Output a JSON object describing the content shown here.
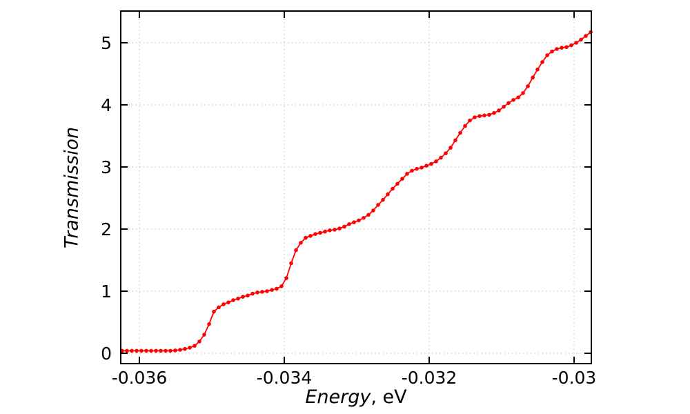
{
  "figure": {
    "background": "#ffffff",
    "border_color": "#000000",
    "grid_color": "#bcbcbc",
    "series_color": "#ff0000"
  },
  "axes": {
    "x_title_italic": "Energy",
    "x_title_suffix": ", eV",
    "y_title": "Transmission"
  },
  "chart_data": {
    "type": "line",
    "title": "",
    "xlabel": "Energy, eV",
    "ylabel": "Transmission",
    "legend": null,
    "grid": true,
    "grid_style": "dotted",
    "marker": "filled-circle",
    "line_color": "#ff0000",
    "xlim": [
      -0.036257,
      -0.029762
    ],
    "ylim": [
      -0.167,
      5.511
    ],
    "xticks": [
      {
        "v": -0.036,
        "label": "-0.036"
      },
      {
        "v": -0.034,
        "label": "-0.034"
      },
      {
        "v": -0.032,
        "label": "-0.032"
      },
      {
        "v": -0.03,
        "label": "-0.03"
      }
    ],
    "yticks": [
      {
        "v": 0,
        "label": "0"
      },
      {
        "v": 1,
        "label": "1"
      },
      {
        "v": 2,
        "label": "2"
      },
      {
        "v": 3,
        "label": "3"
      },
      {
        "v": 4,
        "label": "4"
      },
      {
        "v": 5,
        "label": "5"
      }
    ],
    "series": [
      {
        "name": "transmission",
        "x": [
          -0.036238,
          -0.036171,
          -0.036105,
          -0.036038,
          -0.035971,
          -0.035905,
          -0.035838,
          -0.035771,
          -0.035705,
          -0.035638,
          -0.035571,
          -0.035505,
          -0.035438,
          -0.035371,
          -0.035305,
          -0.035238,
          -0.035171,
          -0.035105,
          -0.035038,
          -0.034971,
          -0.034905,
          -0.034838,
          -0.034771,
          -0.034705,
          -0.034638,
          -0.034571,
          -0.034505,
          -0.034438,
          -0.034371,
          -0.034305,
          -0.034238,
          -0.034171,
          -0.034105,
          -0.034038,
          -0.033971,
          -0.033905,
          -0.033838,
          -0.033771,
          -0.033705,
          -0.033638,
          -0.033571,
          -0.033505,
          -0.033438,
          -0.033371,
          -0.033305,
          -0.033238,
          -0.033171,
          -0.033105,
          -0.033038,
          -0.032971,
          -0.032905,
          -0.032838,
          -0.032771,
          -0.032705,
          -0.032638,
          -0.032571,
          -0.032505,
          -0.032438,
          -0.032371,
          -0.032305,
          -0.032238,
          -0.032171,
          -0.032105,
          -0.032038,
          -0.031971,
          -0.031905,
          -0.031838,
          -0.031771,
          -0.031705,
          -0.031638,
          -0.031571,
          -0.031505,
          -0.031438,
          -0.031371,
          -0.031305,
          -0.031238,
          -0.031171,
          -0.031105,
          -0.031038,
          -0.030971,
          -0.030905,
          -0.030838,
          -0.030771,
          -0.030705,
          -0.030638,
          -0.030571,
          -0.030505,
          -0.030438,
          -0.030371,
          -0.030305,
          -0.030238,
          -0.030171,
          -0.030105,
          -0.030038,
          -0.029971,
          -0.029905,
          -0.029838,
          -0.029771
        ],
        "y": [
          0.04,
          0.04,
          0.04,
          0.04,
          0.04,
          0.04,
          0.04,
          0.04,
          0.04,
          0.04,
          0.04,
          0.045,
          0.055,
          0.07,
          0.09,
          0.12,
          0.19,
          0.3,
          0.47,
          0.67,
          0.74,
          0.79,
          0.82,
          0.855,
          0.88,
          0.91,
          0.93,
          0.96,
          0.98,
          0.99,
          1.0,
          1.02,
          1.04,
          1.08,
          1.21,
          1.45,
          1.66,
          1.78,
          1.86,
          1.89,
          1.92,
          1.94,
          1.96,
          1.98,
          1.99,
          2.01,
          2.04,
          2.08,
          2.11,
          2.14,
          2.18,
          2.23,
          2.3,
          2.39,
          2.47,
          2.56,
          2.65,
          2.73,
          2.81,
          2.89,
          2.94,
          2.97,
          2.99,
          3.02,
          3.05,
          3.09,
          3.15,
          3.22,
          3.31,
          3.43,
          3.55,
          3.66,
          3.75,
          3.8,
          3.82,
          3.83,
          3.84,
          3.87,
          3.91,
          3.97,
          4.03,
          4.08,
          4.12,
          4.19,
          4.3,
          4.44,
          4.57,
          4.69,
          4.8,
          4.86,
          4.9,
          4.92,
          4.93,
          4.96,
          5.0,
          5.05,
          5.11,
          5.17
        ]
      }
    ]
  }
}
